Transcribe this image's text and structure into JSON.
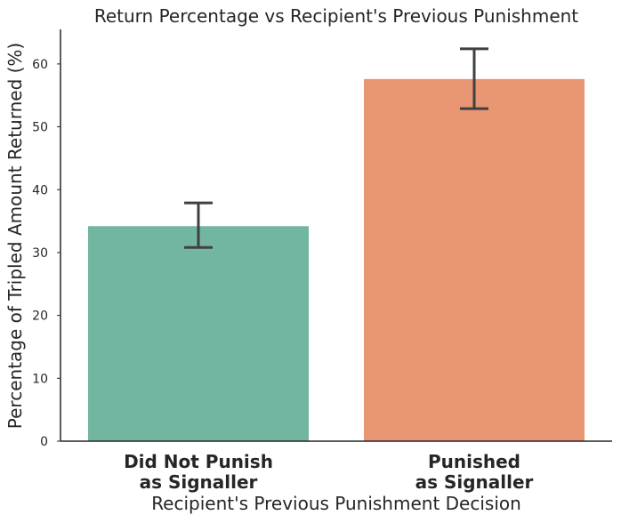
{
  "chart_data": {
    "type": "bar",
    "title": "Return Percentage vs Recipient's Previous Punishment",
    "xlabel": "Recipient's Previous Punishment Decision",
    "ylabel": "Percentage of Tripled Amount Returned (%)",
    "categories": [
      [
        "Did Not Punish",
        "as Signaller"
      ],
      [
        "Punished",
        "as Signaller"
      ]
    ],
    "values": [
      34.2,
      57.6
    ],
    "error_low": [
      30.8,
      52.9
    ],
    "error_high": [
      37.9,
      62.4
    ],
    "colors": [
      "#72b6a1",
      "#e99675"
    ],
    "ylim": [
      0,
      65.5
    ],
    "yticks": [
      0,
      10,
      20,
      30,
      40,
      50,
      60
    ],
    "grid": false
  }
}
